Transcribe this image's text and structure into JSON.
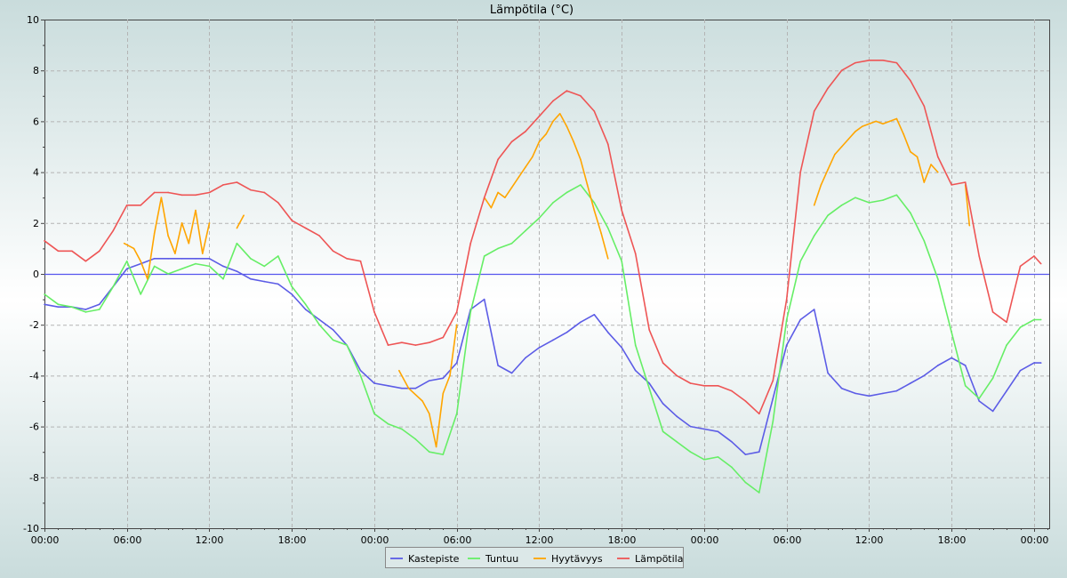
{
  "chart_data": {
    "type": "line",
    "title": "Lämpötila (°C)",
    "xlabel": "",
    "ylabel": "",
    "ylim": [
      -10,
      10
    ],
    "y_ticks": [
      -10,
      -8,
      -6,
      -4,
      -2,
      0,
      2,
      4,
      6,
      8,
      10
    ],
    "x_tick_hours": [
      0,
      6,
      12,
      18,
      24,
      30,
      36,
      42,
      48,
      54,
      60,
      66,
      72
    ],
    "x_tick_labels": [
      "00:00",
      "06:00",
      "12:00",
      "18:00",
      "00:00",
      "06:00",
      "12:00",
      "18:00",
      "00:00",
      "06:00",
      "12:00",
      "18:00",
      "00:00"
    ],
    "xlim_hours": [
      0,
      73.1
    ],
    "grid": true,
    "legend": "bottom-center",
    "zero_line": true,
    "colors": {
      "background_top": "#c9dcdc",
      "background_mid": "#ffffff",
      "zero_line": "#5555ee",
      "grid": "#b4b4b4"
    },
    "series": [
      {
        "name": "Kastepiste",
        "color": "#5c5ce6",
        "x_hours": [
          0,
          1,
          2,
          3,
          4,
          5,
          6,
          7,
          8,
          9,
          10,
          11,
          12,
          13,
          14,
          15,
          16,
          17,
          18,
          19,
          20,
          21,
          22,
          23,
          24,
          25,
          26,
          27,
          28,
          29,
          30,
          31,
          32,
          33,
          34,
          35,
          36,
          37,
          38,
          39,
          40,
          41,
          42,
          43,
          44,
          45,
          46,
          47,
          48,
          49,
          50,
          51,
          52,
          53,
          54,
          55,
          56,
          57,
          58,
          59,
          60,
          61,
          62,
          63,
          64,
          65,
          66,
          67,
          68,
          69,
          70,
          71,
          72,
          72.5
        ],
        "values": [
          -1.2,
          -1.3,
          -1.3,
          -1.4,
          -1.2,
          -0.5,
          0.2,
          0.4,
          0.6,
          0.6,
          0.6,
          0.6,
          0.6,
          0.3,
          0.1,
          -0.2,
          -0.3,
          -0.4,
          -0.8,
          -1.4,
          -1.8,
          -2.2,
          -2.8,
          -3.8,
          -4.3,
          -4.4,
          -4.5,
          -4.5,
          -4.2,
          -4.1,
          -3.5,
          -1.4,
          -1.0,
          -3.6,
          -3.9,
          -3.3,
          -2.9,
          -2.6,
          -2.3,
          -1.9,
          -1.6,
          -2.3,
          -2.9,
          -3.8,
          -4.3,
          -5.1,
          -5.6,
          -6.0,
          -6.1,
          -6.2,
          -6.6,
          -7.1,
          -7.0,
          -4.9,
          -2.8,
          -1.8,
          -1.4,
          -3.9,
          -4.5,
          -4.7,
          -4.8,
          -4.7,
          -4.6,
          -4.3,
          -4.0,
          -3.6,
          -3.3,
          -3.6,
          -5.0,
          -5.4,
          -4.6,
          -3.8,
          -3.5,
          -3.5
        ]
      },
      {
        "name": "Tuntuu",
        "color": "#66ee66",
        "x_hours": [
          0,
          1,
          2,
          3,
          4,
          5,
          6,
          7,
          8,
          9,
          10,
          11,
          12,
          13,
          14,
          15,
          16,
          17,
          18,
          19,
          20,
          21,
          22,
          23,
          24,
          25,
          26,
          27,
          28,
          29,
          30,
          31,
          32,
          33,
          34,
          35,
          36,
          37,
          38,
          39,
          40,
          41,
          42,
          43,
          44,
          45,
          46,
          47,
          48,
          49,
          50,
          51,
          52,
          53,
          54,
          55,
          56,
          57,
          58,
          59,
          60,
          61,
          62,
          63,
          64,
          65,
          66,
          67,
          68,
          69,
          70,
          71,
          72,
          72.5
        ],
        "values": [
          -0.8,
          -1.2,
          -1.3,
          -1.5,
          -1.4,
          -0.5,
          0.5,
          -0.8,
          0.3,
          0.0,
          0.2,
          0.4,
          0.3,
          -0.2,
          1.2,
          0.6,
          0.3,
          0.7,
          -0.5,
          -1.2,
          -2.0,
          -2.6,
          -2.8,
          -4.0,
          -5.5,
          -5.9,
          -6.1,
          -6.5,
          -7.0,
          -7.1,
          -5.5,
          -1.5,
          0.7,
          1.0,
          1.2,
          1.7,
          2.2,
          2.8,
          3.2,
          3.5,
          2.8,
          1.8,
          0.5,
          -2.8,
          -4.5,
          -6.2,
          -6.6,
          -7.0,
          -7.3,
          -7.2,
          -7.6,
          -8.2,
          -8.6,
          -5.8,
          -1.8,
          0.5,
          1.5,
          2.3,
          2.7,
          3.0,
          2.8,
          2.9,
          3.1,
          2.4,
          1.3,
          -0.2,
          -2.3,
          -4.4,
          -4.9,
          -4.1,
          -2.8,
          -2.1,
          -1.8,
          -1.8
        ]
      },
      {
        "name": "Hyytävyys",
        "color": "#ffa500",
        "segments": [
          {
            "x_hours": [
              5.8,
              6.5,
              7.0,
              7.5,
              8.0,
              8.5,
              9.0,
              9.5,
              10.0,
              10.5,
              11.0,
              11.5,
              12.0
            ],
            "values": [
              1.2,
              1.0,
              0.5,
              -0.2,
              1.6,
              3.0,
              1.5,
              0.8,
              2.0,
              1.2,
              2.5,
              0.8,
              2.0
            ]
          },
          {
            "x_hours": [
              14.0,
              14.5
            ],
            "values": [
              1.8,
              2.3
            ]
          },
          {
            "x_hours": [
              25.8,
              26.5,
              27.5,
              28.0,
              28.5,
              29.0,
              29.5,
              30.0
            ],
            "values": [
              -3.8,
              -4.5,
              -5.0,
              -5.5,
              -6.8,
              -4.7,
              -4.0,
              -2.0
            ]
          },
          {
            "x_hours": [
              32.0,
              32.5,
              33.0,
              33.5,
              34.0,
              34.5,
              35.0,
              35.5,
              36.0,
              36.5,
              37.0,
              37.5,
              38.0,
              38.5,
              39.0,
              39.5,
              40.0,
              40.5,
              41.0
            ],
            "values": [
              3.0,
              2.6,
              3.2,
              3.0,
              3.4,
              3.8,
              4.2,
              4.6,
              5.2,
              5.5,
              6.0,
              6.3,
              5.8,
              5.2,
              4.5,
              3.5,
              2.5,
              1.6,
              0.6
            ]
          },
          {
            "x_hours": [
              56.0,
              56.5,
              57.0,
              57.5,
              58.0,
              58.5,
              59.0,
              59.5,
              60.0,
              60.5,
              61.0,
              61.5,
              62.0,
              62.5,
              63.0,
              63.5,
              64.0,
              64.5,
              65.0
            ],
            "values": [
              2.7,
              3.5,
              4.1,
              4.7,
              5.0,
              5.3,
              5.6,
              5.8,
              5.9,
              6.0,
              5.9,
              6.0,
              6.1,
              5.5,
              4.8,
              4.6,
              3.6,
              4.3,
              4.0
            ]
          },
          {
            "x_hours": [
              67.0,
              67.3
            ],
            "values": [
              3.5,
              1.9
            ]
          }
        ]
      },
      {
        "name": "Lämpötila",
        "color": "#ee5555",
        "x_hours": [
          0,
          1,
          2,
          3,
          4,
          5,
          6,
          7,
          8,
          9,
          10,
          11,
          12,
          13,
          14,
          15,
          16,
          17,
          18,
          19,
          20,
          21,
          22,
          23,
          24,
          25,
          26,
          27,
          28,
          29,
          30,
          31,
          32,
          33,
          34,
          35,
          36,
          37,
          38,
          39,
          40,
          41,
          42,
          43,
          44,
          45,
          46,
          47,
          48,
          49,
          50,
          51,
          52,
          53,
          54,
          55,
          56,
          57,
          58,
          59,
          60,
          61,
          62,
          63,
          64,
          65,
          66,
          67,
          68,
          69,
          70,
          71,
          72,
          72.5
        ],
        "values": [
          1.3,
          0.9,
          0.9,
          0.5,
          0.9,
          1.7,
          2.7,
          2.7,
          3.2,
          3.2,
          3.1,
          3.1,
          3.2,
          3.5,
          3.6,
          3.3,
          3.2,
          2.8,
          2.1,
          1.8,
          1.5,
          0.9,
          0.6,
          0.5,
          -1.5,
          -2.8,
          -2.7,
          -2.8,
          -2.7,
          -2.5,
          -1.5,
          1.2,
          3.0,
          4.5,
          5.2,
          5.6,
          6.2,
          6.8,
          7.2,
          7.0,
          6.4,
          5.1,
          2.5,
          0.8,
          -2.2,
          -3.5,
          -4.0,
          -4.3,
          -4.4,
          -4.4,
          -4.6,
          -5.0,
          -5.5,
          -4.2,
          -1.0,
          4.0,
          6.4,
          7.3,
          8.0,
          8.3,
          8.4,
          8.4,
          8.3,
          7.6,
          6.6,
          4.6,
          3.5,
          3.6,
          0.7,
          -1.5,
          -1.9,
          0.3,
          0.7,
          0.4
        ]
      }
    ]
  }
}
